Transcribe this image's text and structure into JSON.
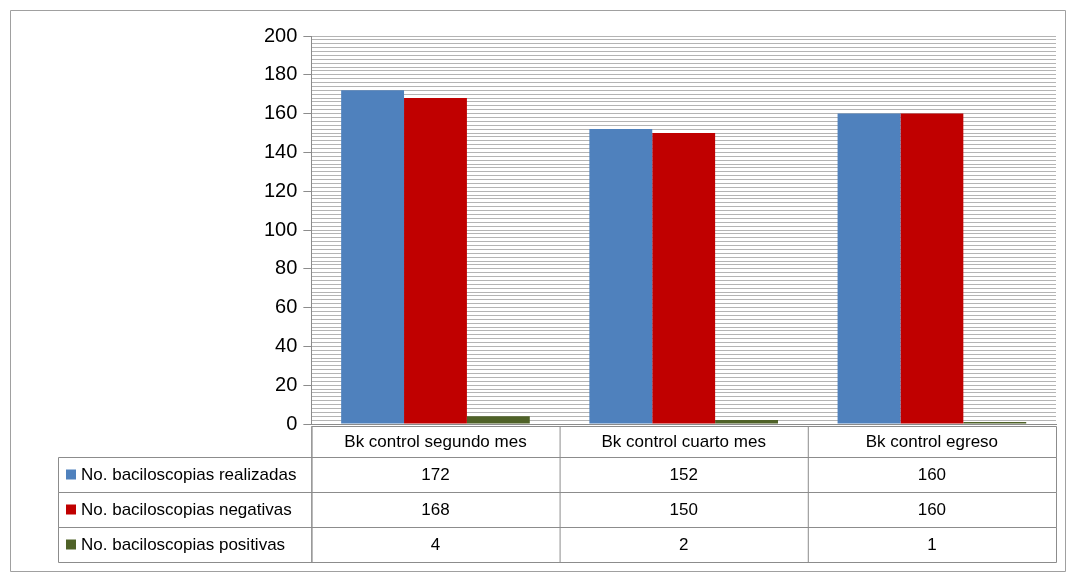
{
  "chart_data": {
    "type": "bar",
    "categories": [
      "Bk control segundo mes",
      "Bk control cuarto mes",
      "Bk control egreso"
    ],
    "series": [
      {
        "name": "No. baciloscopias realizadas",
        "color": "#4f81bd",
        "values": [
          172,
          152,
          160
        ]
      },
      {
        "name": "No. baciloscopias negativas",
        "color": "#c00000",
        "values": [
          168,
          150,
          160
        ]
      },
      {
        "name": "No. baciloscopias positivas",
        "color": "#4f6228",
        "values": [
          4,
          2,
          1
        ]
      }
    ],
    "ylim": [
      0,
      200
    ],
    "yticks": [
      0,
      {
        "value": 2,
        "label": null
      },
      {
        "value": 4,
        "label": null
      },
      {
        "value": 6,
        "label": null
      },
      {
        "value": 8,
        "label": null
      },
      {
        "value": 10,
        "label": null
      },
      {
        "value": 12,
        "label": null
      },
      {
        "value": 14,
        "label": null
      },
      {
        "value": 16,
        "label": null
      },
      {
        "value": 18,
        "label": null
      },
      20,
      {
        "value": 22,
        "label": null
      },
      {
        "value": 24,
        "label": null
      },
      {
        "value": 26,
        "label": null
      },
      {
        "value": 28,
        "label": null
      },
      {
        "value": 30,
        "label": null
      },
      {
        "value": 32,
        "label": null
      },
      {
        "value": 34,
        "label": null
      },
      {
        "value": 36,
        "label": null
      },
      {
        "value": 38,
        "label": null
      },
      40,
      {
        "value": 42,
        "label": null
      },
      {
        "value": 44,
        "label": null
      },
      {
        "value": 46,
        "label": null
      },
      {
        "value": 48,
        "label": null
      },
      {
        "value": 50,
        "label": null
      },
      {
        "value": 52,
        "label": null
      },
      {
        "value": 54,
        "label": null
      },
      {
        "value": 56,
        "label": null
      },
      {
        "value": 58,
        "label": null
      },
      60,
      {
        "value": 62,
        "label": null
      },
      {
        "value": 64,
        "label": null
      },
      {
        "value": 66,
        "label": null
      },
      {
        "value": 68,
        "label": null
      },
      {
        "value": 70,
        "label": null
      },
      {
        "value": 72,
        "label": null
      },
      {
        "value": 74,
        "label": null
      },
      {
        "value": 76,
        "label": null
      },
      {
        "value": 78,
        "label": null
      },
      80,
      {
        "value": 82,
        "label": null
      },
      {
        "value": 84,
        "label": null
      },
      {
        "value": 86,
        "label": null
      },
      {
        "value": 88,
        "label": null
      },
      {
        "value": 90,
        "label": null
      },
      {
        "value": 92,
        "label": null
      },
      {
        "value": 94,
        "label": null
      },
      {
        "value": 96,
        "label": null
      },
      {
        "value": 98,
        "label": null
      },
      100,
      {
        "value": 102,
        "label": null
      },
      {
        "value": 104,
        "label": null
      },
      {
        "value": 106,
        "label": null
      },
      {
        "value": 108,
        "label": null
      },
      {
        "value": 110,
        "label": null
      },
      {
        "value": 112,
        "label": null
      },
      {
        "value": 114,
        "label": null
      },
      {
        "value": 116,
        "label": null
      },
      {
        "value": 118,
        "label": null
      },
      120,
      {
        "value": 122,
        "label": null
      },
      {
        "value": 124,
        "label": null
      },
      {
        "value": 126,
        "label": null
      },
      {
        "value": 128,
        "label": null
      },
      {
        "value": 130,
        "label": null
      },
      {
        "value": 132,
        "label": null
      },
      {
        "value": 134,
        "label": null
      },
      {
        "value": 136,
        "label": null
      },
      {
        "value": 138,
        "label": null
      },
      140,
      {
        "value": 142,
        "label": null
      },
      {
        "value": 144,
        "label": null
      },
      {
        "value": 146,
        "label": null
      },
      {
        "value": 148,
        "label": null
      },
      {
        "value": 150,
        "label": null
      },
      {
        "value": 152,
        "label": null
      },
      {
        "value": 154,
        "label": null
      },
      {
        "value": 156,
        "label": null
      },
      {
        "value": 158,
        "label": null
      },
      160,
      {
        "value": 162,
        "label": null
      },
      {
        "value": 164,
        "label": null
      },
      {
        "value": 166,
        "label": null
      },
      {
        "value": 168,
        "label": null
      },
      {
        "value": 170,
        "label": null
      },
      {
        "value": 172,
        "label": null
      },
      {
        "value": 174,
        "label": null
      },
      {
        "value": 176,
        "label": null
      },
      {
        "value": 178,
        "label": null
      },
      180,
      {
        "value": 182,
        "label": null
      },
      {
        "value": 184,
        "label": null
      },
      {
        "value": 186,
        "label": null
      },
      {
        "value": 188,
        "label": null
      },
      {
        "value": 190,
        "label": null
      },
      {
        "value": 192,
        "label": null
      },
      {
        "value": 194,
        "label": null
      },
      {
        "value": 196,
        "label": null
      },
      {
        "value": 198,
        "label": null
      },
      200
    ],
    "grid": "y",
    "legend": "bottom left",
    "data_labels": true
  }
}
